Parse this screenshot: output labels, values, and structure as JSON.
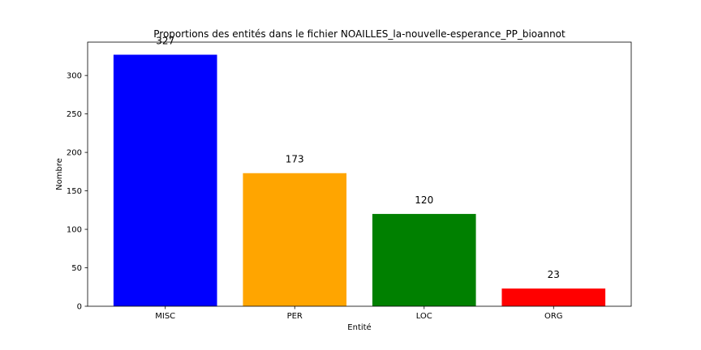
{
  "chart_data": {
    "type": "bar",
    "title": "Proportions des entités dans le fichier NOAILLES_la-nouvelle-esperance_PP_bioannot",
    "xlabel": "Entité",
    "ylabel": "Nombre",
    "categories": [
      "MISC",
      "PER",
      "LOC",
      "ORG"
    ],
    "values": [
      327,
      173,
      120,
      23
    ],
    "data_labels": [
      "327",
      "173",
      "120",
      "23"
    ],
    "colors": [
      "#0000ff",
      "#ffa500",
      "#008000",
      "#ff0000"
    ],
    "ylim": [
      0,
      343.35
    ],
    "yticks": [
      0,
      50,
      100,
      150,
      200,
      250,
      300
    ],
    "ytick_labels": [
      "0",
      "50",
      "100",
      "150",
      "200",
      "250",
      "300"
    ],
    "grid": false,
    "legend": "none"
  }
}
